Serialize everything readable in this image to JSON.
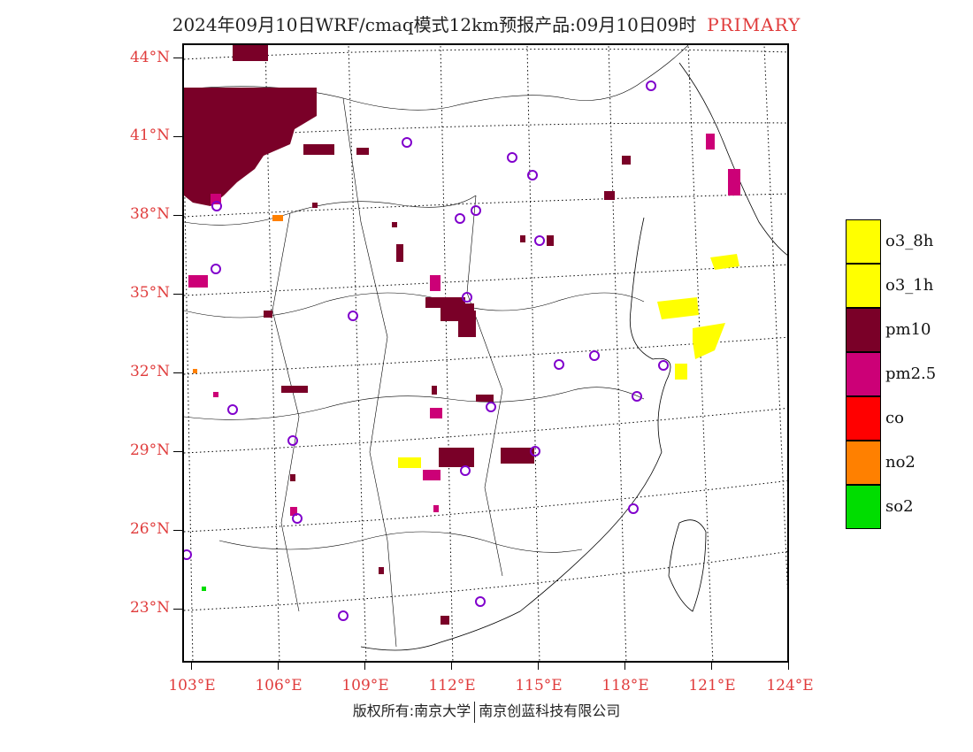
{
  "title": {
    "main": "2024年09月10日WRF/cmaq模式12km预报产品:09月10日09时",
    "tag": "PRIMARY"
  },
  "axes": {
    "lat_labels": [
      "44°N",
      "41°N",
      "38°N",
      "35°N",
      "32°N",
      "29°N",
      "26°N",
      "23°N"
    ],
    "lon_labels": [
      "103°E",
      "106°E",
      "109°E",
      "112°E",
      "115°E",
      "118°E",
      "121°E",
      "124°E"
    ]
  },
  "legend": {
    "items": [
      {
        "label": "o3_8h",
        "color": "#ffff00"
      },
      {
        "label": "o3_1h",
        "color": "#ffff00"
      },
      {
        "label": "pm10",
        "color": "#7a0028"
      },
      {
        "label": "pm2.5",
        "color": "#cc0077"
      },
      {
        "label": "co",
        "color": "#ff0000"
      },
      {
        "label": "no2",
        "color": "#ff8000"
      },
      {
        "label": "so2",
        "color": "#00dd00"
      }
    ]
  },
  "footer": {
    "left": "版权所有:南京大学",
    "right": "南京创蓝科技有限公司"
  },
  "colors": {
    "label_red": "#e03c3c",
    "pm10": "#7a0028",
    "pm25": "#cc0077",
    "o3": "#ffff00",
    "no2": "#ff8000",
    "so2": "#00dd00",
    "station_circle": "#8000cc"
  }
}
